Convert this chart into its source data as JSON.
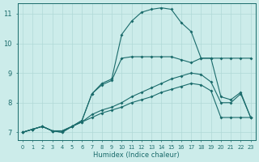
{
  "xlabel": "Humidex (Indice chaleur)",
  "xlim": [
    -0.5,
    23.5
  ],
  "ylim": [
    6.75,
    11.35
  ],
  "xticks": [
    0,
    1,
    2,
    3,
    4,
    5,
    6,
    7,
    8,
    9,
    10,
    11,
    12,
    13,
    14,
    15,
    16,
    17,
    18,
    19,
    20,
    21,
    22,
    23
  ],
  "yticks": [
    7,
    8,
    9,
    10,
    11
  ],
  "background_color": "#ccecea",
  "grid_color": "#b0d8d6",
  "line_color": "#1a6b6b",
  "line1_x": [
    0,
    1,
    2,
    3,
    4,
    5,
    6,
    7,
    8,
    9,
    10,
    11,
    12,
    13,
    14,
    15,
    16,
    17,
    18,
    19,
    20,
    21,
    22,
    23
  ],
  "line1_y": [
    7.0,
    7.1,
    7.2,
    7.05,
    7.05,
    7.2,
    7.35,
    7.5,
    7.65,
    7.75,
    7.85,
    8.0,
    8.1,
    8.2,
    8.35,
    8.45,
    8.55,
    8.65,
    8.6,
    8.4,
    7.5,
    7.5,
    7.5,
    7.5
  ],
  "line2_x": [
    0,
    1,
    2,
    3,
    4,
    5,
    6,
    7,
    8,
    9,
    10,
    11,
    12,
    13,
    14,
    15,
    16,
    17,
    18,
    19,
    20,
    21,
    22,
    23
  ],
  "line2_y": [
    7.0,
    7.1,
    7.2,
    7.05,
    7.05,
    7.2,
    7.35,
    7.6,
    7.75,
    7.85,
    8.0,
    8.2,
    8.35,
    8.5,
    8.65,
    8.8,
    8.9,
    9.0,
    8.95,
    8.7,
    8.0,
    8.0,
    8.3,
    7.5
  ],
  "line3_x": [
    0,
    1,
    2,
    3,
    4,
    5,
    6,
    7,
    8,
    9,
    10,
    11,
    12,
    13,
    14,
    15,
    16,
    17,
    18,
    19,
    20,
    21,
    22,
    23
  ],
  "line3_y": [
    7.0,
    7.1,
    7.2,
    7.05,
    7.0,
    7.2,
    7.4,
    8.3,
    8.6,
    8.75,
    9.5,
    9.55,
    9.55,
    9.55,
    9.55,
    9.55,
    9.45,
    9.35,
    9.5,
    9.5,
    8.2,
    8.1,
    8.35,
    7.5
  ],
  "line4_x": [
    0,
    1,
    2,
    3,
    4,
    5,
    6,
    7,
    8,
    9,
    10,
    11,
    12,
    13,
    14,
    15,
    16,
    17,
    18,
    19,
    20,
    21,
    22,
    23
  ],
  "line4_y": [
    7.0,
    7.1,
    7.2,
    7.05,
    7.0,
    7.2,
    7.4,
    8.3,
    8.65,
    8.8,
    10.3,
    10.75,
    11.05,
    11.15,
    11.2,
    11.15,
    10.7,
    10.4,
    9.5,
    9.5,
    9.5,
    9.5,
    9.5,
    9.5
  ]
}
